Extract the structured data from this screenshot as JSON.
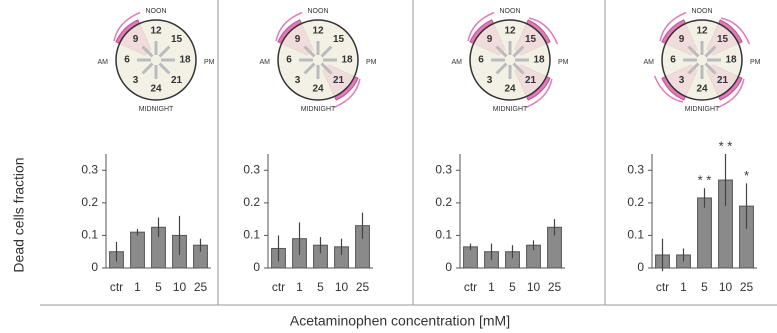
{
  "axis_labels": {
    "y": "Dead cells fraction",
    "x": "Acetaminophen concentration [mM]"
  },
  "chart_data": [
    {
      "type": "bar",
      "categories": [
        "ctr",
        "1",
        "5",
        "10",
        "25"
      ],
      "values": [
        0.05,
        0.11,
        0.125,
        0.1,
        0.07
      ],
      "errors": [
        0.03,
        0.01,
        0.03,
        0.06,
        0.02
      ],
      "color": "#8a8a8a",
      "ylim": [
        0,
        0.35
      ],
      "yticks": [
        0,
        0.1,
        0.2,
        0.3
      ],
      "clock": {
        "top": "NOON",
        "bottom": "MIDNIGHT",
        "left": "AM",
        "right": "PM",
        "hours": [
          12,
          15,
          18,
          21,
          24,
          3,
          6,
          9
        ],
        "dosed": [
          9
        ],
        "color": "#e07ab8"
      }
    },
    {
      "type": "bar",
      "categories": [
        "ctr",
        "1",
        "5",
        "10",
        "25"
      ],
      "values": [
        0.06,
        0.09,
        0.07,
        0.065,
        0.13
      ],
      "errors": [
        0.04,
        0.05,
        0.025,
        0.025,
        0.04
      ],
      "color": "#8a8a8a",
      "ylim": [
        0,
        0.35
      ],
      "yticks": [
        0,
        0.1,
        0.2,
        0.3
      ],
      "clock": {
        "top": "NOON",
        "bottom": "MIDNIGHT",
        "left": "AM",
        "right": "PM",
        "hours": [
          12,
          15,
          18,
          21,
          24,
          3,
          6,
          9
        ],
        "dosed": [
          9,
          21
        ],
        "color": "#e07ab8"
      }
    },
    {
      "type": "bar",
      "categories": [
        "ctr",
        "1",
        "5",
        "10",
        "25"
      ],
      "values": [
        0.065,
        0.05,
        0.05,
        0.07,
        0.125
      ],
      "errors": [
        0.01,
        0.025,
        0.02,
        0.015,
        0.025
      ],
      "color": "#8a8a8a",
      "ylim": [
        0,
        0.35
      ],
      "yticks": [
        0,
        0.1,
        0.2,
        0.3
      ],
      "clock": {
        "top": "NOON",
        "bottom": "MIDNIGHT",
        "left": "AM",
        "right": "PM",
        "hours": [
          12,
          15,
          18,
          21,
          24,
          3,
          6,
          9
        ],
        "dosed": [
          9,
          15,
          21
        ],
        "color": "#e07ab8"
      }
    },
    {
      "type": "bar",
      "categories": [
        "ctr",
        "1",
        "5",
        "10",
        "25"
      ],
      "values": [
        0.04,
        0.04,
        0.215,
        0.27,
        0.19
      ],
      "errors": [
        0.05,
        0.02,
        0.03,
        0.08,
        0.07
      ],
      "value_annotations": [
        null,
        null,
        "* *",
        "* *",
        "*"
      ],
      "color": "#8a8a8a",
      "ylim": [
        0,
        0.35
      ],
      "yticks": [
        0,
        0.1,
        0.2,
        0.3
      ],
      "clock": {
        "top": "NOON",
        "bottom": "MIDNIGHT",
        "left": "AM",
        "right": "PM",
        "hours": [
          12,
          15,
          18,
          21,
          24,
          3,
          6,
          9
        ],
        "dosed": [
          9,
          15,
          21,
          3
        ],
        "color": "#e07ab8"
      }
    }
  ]
}
